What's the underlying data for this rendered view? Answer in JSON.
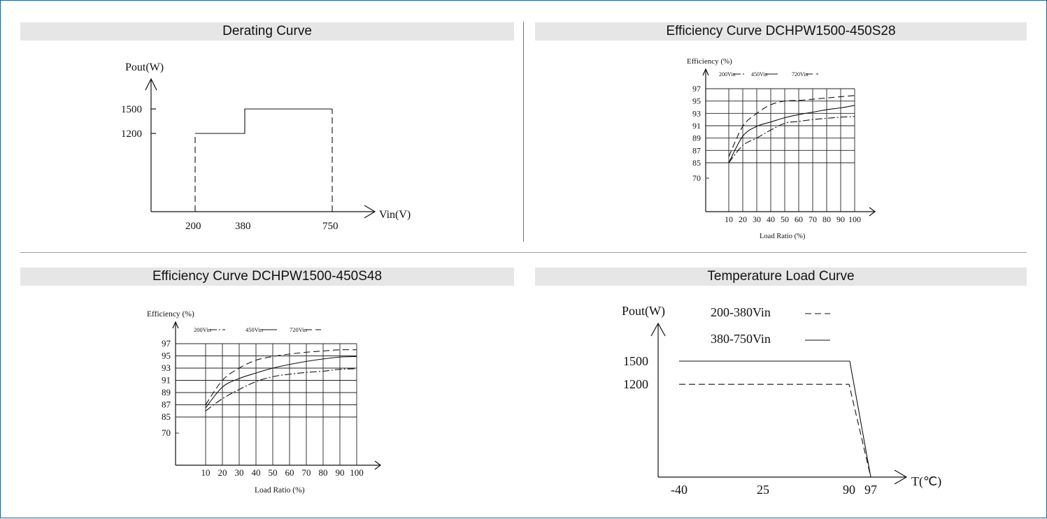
{
  "panels": {
    "derating": {
      "title": "Derating Curve"
    },
    "eff28": {
      "title": "Efficiency Curve DCHPW1500-450S28"
    },
    "eff48": {
      "title": "Efficiency Curve DCHPW1500-450S48"
    },
    "temp": {
      "title": "Temperature Load Curve"
    }
  },
  "chart_data": [
    {
      "id": "derating",
      "type": "line",
      "title": "Derating Curve",
      "xlabel": "Vin(V)",
      "ylabel": "Pout(W)",
      "x_ticks": [
        "200",
        "380",
        "750"
      ],
      "y_ticks": [
        "1200",
        "1500"
      ],
      "xlim": [
        0,
        1000
      ],
      "ylim": [
        0,
        2050
      ],
      "series": [
        {
          "style": "solid",
          "points": [
            [
              200,
              1200
            ],
            [
              380,
              1200
            ],
            [
              380,
              1500
            ],
            [
              750,
              1500
            ]
          ]
        },
        {
          "style": "dashed",
          "points": [
            [
              200,
              0
            ],
            [
              200,
              1200
            ]
          ]
        },
        {
          "style": "dashed",
          "points": [
            [
              750,
              0
            ],
            [
              750,
              1500
            ]
          ]
        }
      ]
    },
    {
      "id": "eff28",
      "type": "line",
      "title": "Efficiency (%)",
      "xlabel": "Load Ratio (%)",
      "ylabel": "",
      "x_ticks": [
        "10",
        "20",
        "30",
        "40",
        "50",
        "60",
        "70",
        "80",
        "90",
        "100"
      ],
      "y_ticks": [
        "97",
        "95",
        "93",
        "91",
        "89",
        "87",
        "85",
        "70"
      ],
      "legend": [
        "200Vin",
        "450Vin",
        "720Vin"
      ],
      "legend_placement": "top",
      "grid": true,
      "series": [
        {
          "name": "200Vin",
          "style": "dashdot",
          "x": [
            10,
            20,
            30,
            40,
            50,
            60,
            70,
            80,
            90,
            100
          ],
          "y": [
            85.0,
            87.8,
            89.0,
            90.3,
            91.4,
            91.7,
            92.0,
            92.2,
            92.4,
            92.5
          ]
        },
        {
          "name": "450Vin",
          "style": "solid",
          "x": [
            10,
            20,
            30,
            40,
            50,
            60,
            70,
            80,
            90,
            100
          ],
          "y": [
            85.0,
            89.3,
            90.9,
            91.6,
            92.3,
            92.8,
            93.2,
            93.6,
            93.9,
            94.3
          ]
        },
        {
          "name": "720Vin",
          "style": "dashed",
          "x": [
            10,
            20,
            30,
            40,
            50,
            60,
            70,
            80,
            90,
            100
          ],
          "y": [
            86.0,
            90.9,
            93.0,
            94.4,
            95.0,
            95.1,
            95.3,
            95.5,
            95.7,
            95.9
          ]
        }
      ]
    },
    {
      "id": "eff48",
      "type": "line",
      "title": "Efficiency (%)",
      "xlabel": "Load Ratio (%)",
      "ylabel": "",
      "x_ticks": [
        "10",
        "20",
        "30",
        "40",
        "50",
        "60",
        "70",
        "80",
        "90",
        "100"
      ],
      "y_ticks": [
        "97",
        "95",
        "93",
        "91",
        "89",
        "87",
        "85",
        "70"
      ],
      "legend": [
        "200Vin",
        "450Vin",
        "720Vin"
      ],
      "legend_placement": "top",
      "grid": true,
      "series": [
        {
          "name": "200Vin",
          "style": "dashdot",
          "x": [
            10,
            20,
            30,
            40,
            50,
            60,
            70,
            80,
            90,
            100
          ],
          "y": [
            86.0,
            88.0,
            89.5,
            90.8,
            91.6,
            92.0,
            92.3,
            92.5,
            92.8,
            92.9
          ]
        },
        {
          "name": "450Vin",
          "style": "solid",
          "x": [
            10,
            20,
            30,
            40,
            50,
            60,
            70,
            80,
            90,
            100
          ],
          "y": [
            86.5,
            89.9,
            91.3,
            92.2,
            93.0,
            93.6,
            94.1,
            94.5,
            94.8,
            94.9
          ]
        },
        {
          "name": "720Vin",
          "style": "dashed",
          "x": [
            10,
            20,
            30,
            40,
            50,
            60,
            70,
            80,
            90,
            100
          ],
          "y": [
            87.0,
            91.0,
            93.0,
            94.3,
            94.9,
            95.3,
            95.6,
            95.8,
            96.0,
            96.0
          ]
        }
      ]
    },
    {
      "id": "temp",
      "type": "line",
      "title": "",
      "xlabel": "T(℃)",
      "ylabel": "Pout(W)",
      "x_ticks": [
        "-40",
        "25",
        "90",
        "97"
      ],
      "y_ticks": [
        "1500",
        "1200"
      ],
      "legend_placement": "top",
      "series": [
        {
          "name": "200-380Vin",
          "style": "dashed",
          "points": [
            [
              -40,
              1200
            ],
            [
              90,
              1200
            ],
            [
              97,
              0
            ]
          ]
        },
        {
          "name": "380-750Vin",
          "style": "solid",
          "points": [
            [
              -40,
              1500
            ],
            [
              90,
              1500
            ],
            [
              97,
              0
            ]
          ]
        }
      ]
    }
  ]
}
